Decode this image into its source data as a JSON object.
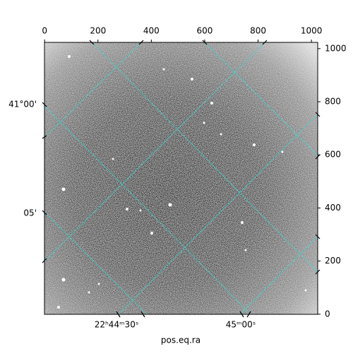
{
  "chart_data": {
    "type": "image",
    "xlabel": "pos.eq.ra",
    "xlim": [
      -0.5,
      1023.5
    ],
    "ylim": [
      -0.5,
      1023.5
    ],
    "xticks": [
      0,
      200,
      400,
      600,
      800,
      1000
    ],
    "yticks": [
      0,
      200,
      400,
      600,
      800,
      1000
    ],
    "ra_ticks": [
      "22ʰ44ᵐ30ˢ",
      "45ᵐ00ˢ"
    ],
    "dec_ticks": [
      "41°00'",
      "05'"
    ]
  }
}
